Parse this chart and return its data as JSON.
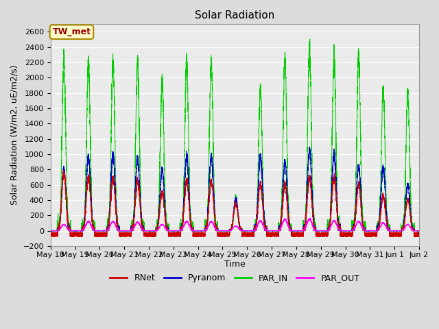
{
  "title": "Solar Radiation",
  "ylabel": "Solar Radiation (W/m2, uE/m2/s)",
  "xlabel": "Time",
  "ylim": [
    -200,
    2700
  ],
  "yticks": [
    -200,
    0,
    200,
    400,
    600,
    800,
    1000,
    1200,
    1400,
    1600,
    1800,
    2000,
    2200,
    2400,
    2600
  ],
  "bg_color": "#dcdcdc",
  "plot_bg": "#ebebeb",
  "colors": {
    "RNet": "#cc0000",
    "Pyranom": "#0000cc",
    "PAR_IN": "#00cc00",
    "PAR_OUT": "#ff00ff"
  },
  "legend_label": "TW_met",
  "legend_label_color": "#990000",
  "legend_label_bg": "#ffffcc",
  "legend_label_edge": "#aa8800",
  "tick_fontsize": 8,
  "axis_fontsize": 9,
  "title_fontsize": 11,
  "tick_labels": [
    "May 18",
    "May 19",
    "May 20",
    "May 21",
    "May 22",
    "May 23",
    "May 24",
    "May 25",
    "May 26",
    "May 27",
    "May 28",
    "May 29",
    "May 30",
    "May 31",
    "Jun 1",
    "Jun 2"
  ]
}
